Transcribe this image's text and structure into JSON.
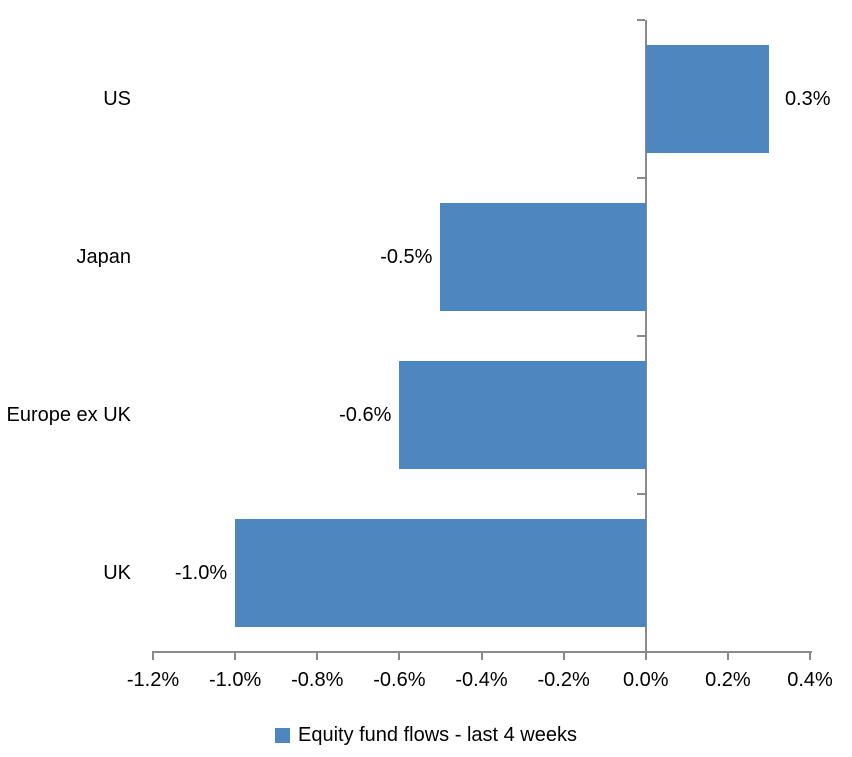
{
  "chart_data": {
    "type": "bar",
    "orientation": "horizontal",
    "title": "",
    "xlabel": "",
    "ylabel": "",
    "categories": [
      "US",
      "Japan",
      "Europe ex UK",
      "UK"
    ],
    "values": [
      0.3,
      -0.5,
      -0.6,
      -1.0
    ],
    "value_labels": [
      "0.3%",
      "-0.5%",
      "-0.6%",
      "-1.0%"
    ],
    "series_name": "Equity fund flows - last 4 weeks",
    "xlim": [
      -1.2,
      0.4
    ],
    "x_ticks": [
      -1.2,
      -1.0,
      -0.8,
      -0.6,
      -0.4,
      -0.2,
      0.0,
      0.2,
      0.4
    ],
    "x_tick_labels": [
      "-1.2%",
      "-1.0%",
      "-0.8%",
      "-0.6%",
      "-0.4%",
      "-0.2%",
      "0.0%",
      "0.2%",
      "0.4%"
    ],
    "grid": false,
    "legend_position": "bottom",
    "bar_color": "#4E86C0",
    "axis_color": "#8A8A8A",
    "text_color": "#000000"
  }
}
